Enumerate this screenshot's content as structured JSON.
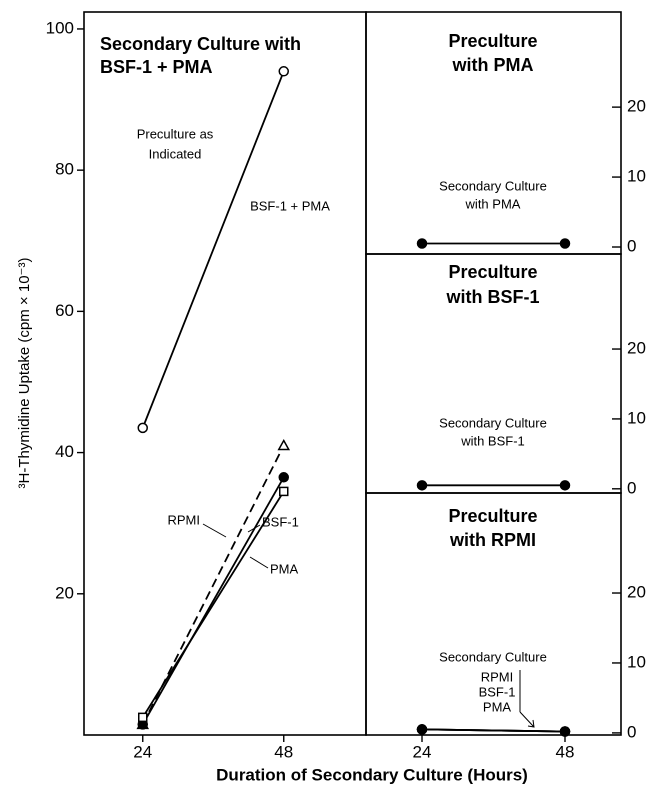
{
  "ylabel": "³H-Thymidine Uptake (cpm × 10⁻³)",
  "xlabel": "Duration of Secondary Culture (Hours)",
  "chart_data": [
    {
      "type": "line",
      "title": [
        "Secondary Culture with",
        "BSF-1 + PMA"
      ],
      "annotation": [
        "Preculture as",
        "Indicated"
      ],
      "x": [
        24,
        48
      ],
      "xlim": [
        14,
        62
      ],
      "xticks": [
        24,
        48
      ],
      "ylim": [
        0,
        102.4
      ],
      "yticks": [
        20,
        40,
        60,
        80,
        100
      ],
      "series": [
        {
          "name": "BSF-1 + PMA",
          "color": "#000000",
          "marker": "open-circle",
          "dashed": false,
          "values": [
            43.5,
            94
          ]
        },
        {
          "name": "RPMI",
          "color": "#000000",
          "marker": "open-triangle",
          "dashed": true,
          "values": [
            1.5,
            41
          ]
        },
        {
          "name": "BSF-1",
          "color": "#000000",
          "marker": "filled-circle",
          "dashed": false,
          "values": [
            1.5,
            36.5
          ]
        },
        {
          "name": "PMA",
          "color": "#000000",
          "marker": "open-square",
          "dashed": false,
          "values": [
            2.5,
            34.5
          ]
        }
      ]
    },
    {
      "type": "line",
      "title": [
        "Preculture",
        "with PMA"
      ],
      "annotation": [
        "Secondary Culture",
        "with PMA"
      ],
      "x": [
        24,
        48
      ],
      "xlim": [
        14.6,
        57.4
      ],
      "ylim": [
        -1,
        33.6
      ],
      "yticks": [
        0,
        10,
        20
      ],
      "series": [
        {
          "color": "#000000",
          "marker": "filled-circle",
          "dashed": false,
          "values": [
            0.5,
            0.5
          ]
        }
      ]
    },
    {
      "type": "line",
      "title": [
        "Preculture",
        "with BSF-1"
      ],
      "annotation": [
        "Secondary Culture",
        "with BSF-1"
      ],
      "x": [
        24,
        48
      ],
      "xlim": [
        14.6,
        57.4
      ],
      "ylim": [
        -0.6,
        33.6
      ],
      "yticks": [
        0,
        10,
        20
      ],
      "series": [
        {
          "color": "#000000",
          "marker": "filled-circle",
          "dashed": false,
          "values": [
            0.5,
            0.5
          ]
        }
      ]
    },
    {
      "type": "line",
      "title": [
        "Preculture",
        "with RPMI"
      ],
      "annotation": [
        "Secondary Culture"
      ],
      "x": [
        24,
        48
      ],
      "xlim": [
        14.6,
        57.4
      ],
      "xticks": [
        24,
        48
      ],
      "ylim": [
        -0.3,
        34.3
      ],
      "yticks": [
        0,
        10,
        20
      ],
      "series": [
        {
          "name": "RPMI",
          "color": "#000000",
          "marker": "filled-circle",
          "dashed": false,
          "values": [
            0.5,
            0.2
          ]
        },
        {
          "name": "BSF-1",
          "color": "#000000",
          "marker": "filled-circle",
          "dashed": false,
          "values": [
            0.5,
            0.2
          ]
        },
        {
          "name": "PMA",
          "color": "#000000",
          "marker": "filled-circle",
          "dashed": false,
          "values": [
            0.5,
            0.2
          ]
        }
      ]
    }
  ]
}
